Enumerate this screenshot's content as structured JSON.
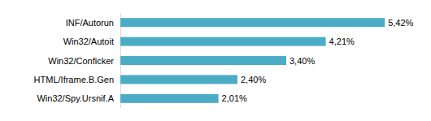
{
  "chart_data": {
    "type": "bar",
    "orientation": "horizontal",
    "categories": [
      "INF/Autorun",
      "Win32/Autoit",
      "Win32/Conficker",
      "HTML/Iframe.B.Gen",
      "Win32/Spy.Ursnif.A"
    ],
    "values": [
      5.42,
      4.21,
      3.4,
      2.4,
      2.01
    ],
    "value_labels": [
      "5,42%",
      "4,21%",
      "3,40%",
      "2,40%",
      "2,01%"
    ],
    "color": "#4bacc6",
    "xlim": [
      0,
      6
    ],
    "data_labels": true,
    "tick_labels": "y",
    "grid": false
  }
}
